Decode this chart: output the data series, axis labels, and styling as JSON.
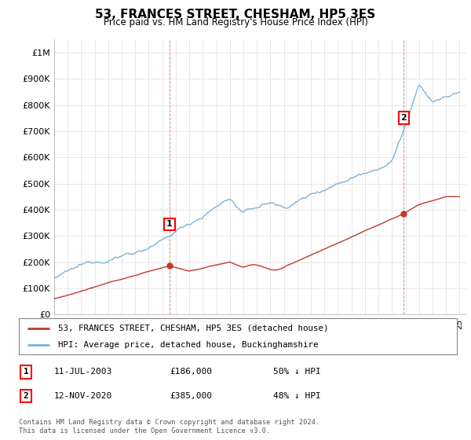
{
  "title": "53, FRANCES STREET, CHESHAM, HP5 3ES",
  "subtitle": "Price paid vs. HM Land Registry's House Price Index (HPI)",
  "ylim": [
    0,
    1050000
  ],
  "yticks": [
    0,
    100000,
    200000,
    300000,
    400000,
    500000,
    600000,
    700000,
    800000,
    900000,
    1000000
  ],
  "ytick_labels": [
    "£0",
    "£100K",
    "£200K",
    "£300K",
    "£400K",
    "£500K",
    "£600K",
    "£700K",
    "£800K",
    "£900K",
    "£1M"
  ],
  "hpi_color": "#7ab4d8",
  "price_color": "#c0392b",
  "marker1_price": 186000,
  "marker1_year": 2003.54,
  "marker1_label": "1",
  "marker1_date_str": "11-JUL-2003",
  "marker1_price_str": "£186,000",
  "marker1_pct_str": "50% ↓ HPI",
  "marker2_price": 385000,
  "marker2_year": 2020.87,
  "marker2_label": "2",
  "marker2_date_str": "12-NOV-2020",
  "marker2_price_str": "£385,000",
  "marker2_pct_str": "48% ↓ HPI",
  "legend_line1": "53, FRANCES STREET, CHESHAM, HP5 3ES (detached house)",
  "legend_line2": "HPI: Average price, detached house, Buckinghamshire",
  "footnote": "Contains HM Land Registry data © Crown copyright and database right 2024.\nThis data is licensed under the Open Government Licence v3.0.",
  "background_color": "#ffffff",
  "grid_color": "#dddddd"
}
